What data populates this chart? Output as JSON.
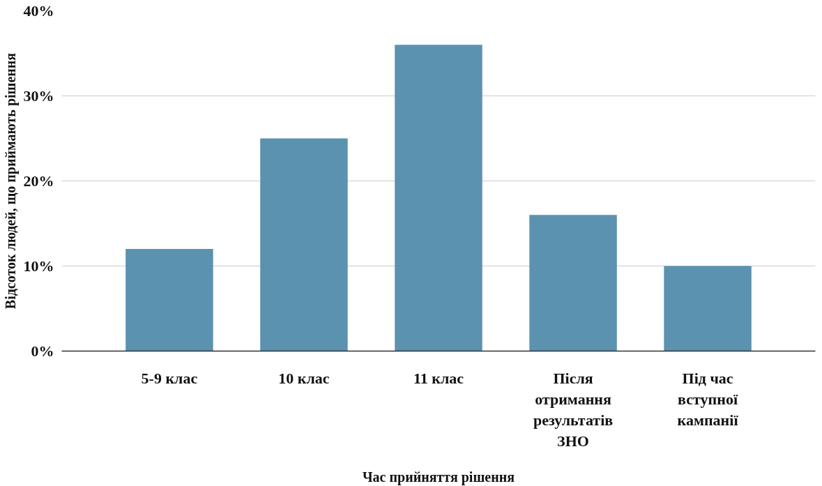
{
  "chart_data": {
    "type": "bar",
    "xlabel": "Час прийняття рішення",
    "ylabel": "Відсоток людей, що приймають рішення",
    "categories": [
      "5-9 клас",
      "10 клас",
      "11 клас",
      "Після отримання результатів ЗНО",
      "Під час вступної кампанії"
    ],
    "values": [
      12,
      25,
      36,
      16,
      10
    ],
    "color": "#5a92b0",
    "ylim": [
      0,
      40
    ],
    "yticks": [
      {
        "value": 0,
        "label": "0%"
      },
      {
        "value": 10,
        "label": "10%"
      },
      {
        "value": 20,
        "label": "20%"
      },
      {
        "value": 30,
        "label": "30%"
      },
      {
        "value": 40,
        "label": "40%"
      }
    ],
    "grid": "y"
  }
}
